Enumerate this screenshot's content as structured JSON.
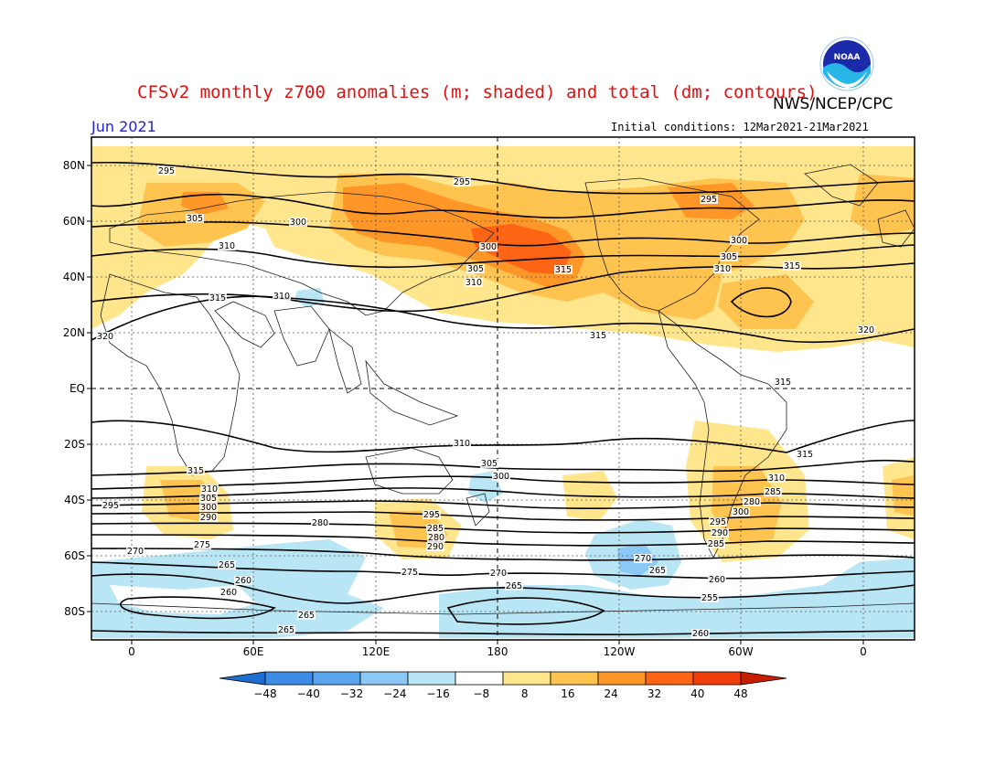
{
  "title": "CFSv2 monthly z700 anomalies (m; shaded) and total (dm; contours)",
  "agency": "NWS/NCEP/CPC",
  "month": "Jun 2021",
  "initial_conditions": "Initial conditions: 12Mar2021-21Mar2021",
  "logo_text": "NOAA",
  "lat_labels": [
    "80N",
    "60N",
    "40N",
    "20N",
    "EQ",
    "20S",
    "40S",
    "60S",
    "80S"
  ],
  "lon_labels": [
    "0",
    "60E",
    "120E",
    "180",
    "120W",
    "60W",
    "0"
  ],
  "colorbar": {
    "ticks": [
      "-48",
      "-40",
      "-32",
      "-24",
      "-16",
      "-8",
      "8",
      "16",
      "24",
      "32",
      "40",
      "48"
    ],
    "colors": [
      "#1e6ed2",
      "#3c8ce6",
      "#5aa5f0",
      "#8cc8f5",
      "#b9e6f5",
      "#ffffff",
      "#ffe68c",
      "#ffc350",
      "#ff9628",
      "#ff6414",
      "#f03c0a",
      "#c81e00"
    ]
  },
  "colors": {
    "title": "#e01010",
    "month": "#2020e0",
    "pos1": "#ffe68c",
    "pos2": "#ffc350",
    "pos3": "#ff9628",
    "pos4": "#ff6414",
    "neg1": "#b9e6f5",
    "neg2": "#8cc8f5",
    "neg3": "#5aa5f0"
  },
  "contour_labels": [
    "295",
    "295",
    "295",
    "305",
    "300",
    "310",
    "300",
    "305",
    "310",
    "315",
    "300",
    "305",
    "310",
    "315",
    "310",
    "315",
    "315",
    "320",
    "320",
    "315",
    "310",
    "315",
    "305",
    "300",
    "310",
    "315",
    "310",
    "305",
    "295",
    "300",
    "295",
    "290",
    "285",
    "280",
    "290",
    "285",
    "280",
    "300",
    "295",
    "290",
    "285",
    "280",
    "275",
    "270",
    "265",
    "260",
    "260",
    "265",
    "270",
    "265",
    "275",
    "270",
    "265",
    "260",
    "255",
    "260",
    "265"
  ]
}
